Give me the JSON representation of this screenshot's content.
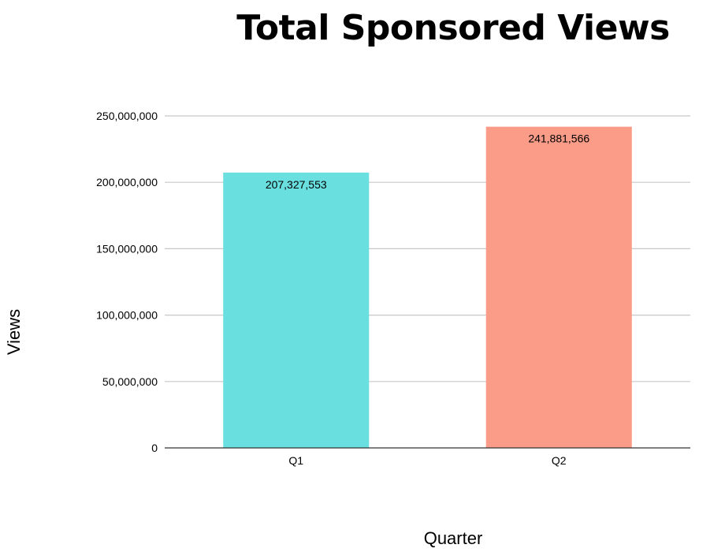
{
  "chart_data": {
    "type": "bar",
    "title": "Total Sponsored Views",
    "xlabel": "Quarter",
    "ylabel": "Views",
    "categories": [
      "Q1",
      "Q2"
    ],
    "values": [
      207327553,
      241881566
    ],
    "data_labels": [
      "207,327,553",
      "241,881,566"
    ],
    "colors": [
      "#6ADFDF",
      "#FA9C88"
    ],
    "ylim": [
      0,
      250000000
    ],
    "yticks": [
      0,
      50000000,
      100000000,
      150000000,
      200000000,
      250000000
    ],
    "ytick_labels": [
      "0",
      "50,000,000",
      "100,000,000",
      "150,000,000",
      "200,000,000",
      "250,000,000"
    ],
    "grid": true,
    "legend": false
  }
}
